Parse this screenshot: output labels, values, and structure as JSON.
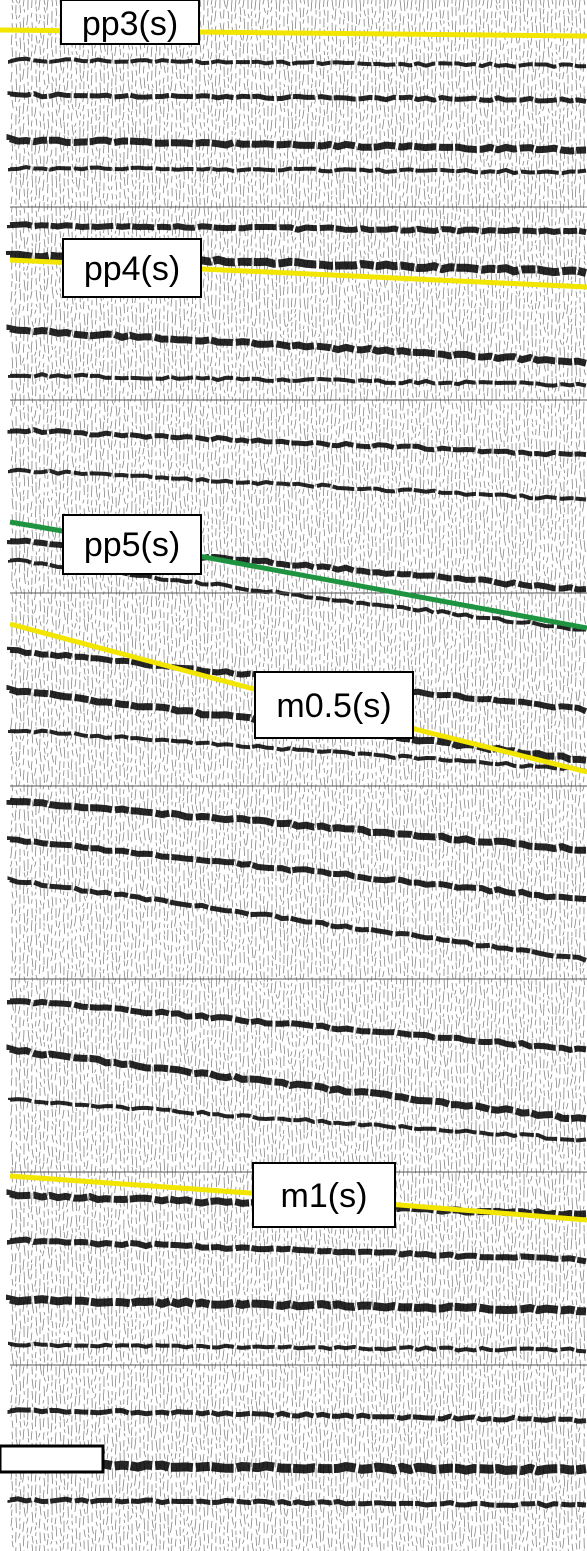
{
  "horizons": [
    {
      "id": "pp3",
      "label": "pp3(s)",
      "color": "#f2e600"
    },
    {
      "id": "pp4",
      "label": "pp4(s)",
      "color": "#f2e600"
    },
    {
      "id": "pp5",
      "label": "pp5(s)",
      "color": "#1e9440"
    },
    {
      "id": "m05",
      "label": "m0.5(s)",
      "color": "#f2e600"
    },
    {
      "id": "m1",
      "label": "m1(s)",
      "color": "#f2e600"
    }
  ],
  "colors": {
    "background": "#ffffff",
    "wiggle_ink": "#000000",
    "panel_separator": "#555555"
  }
}
